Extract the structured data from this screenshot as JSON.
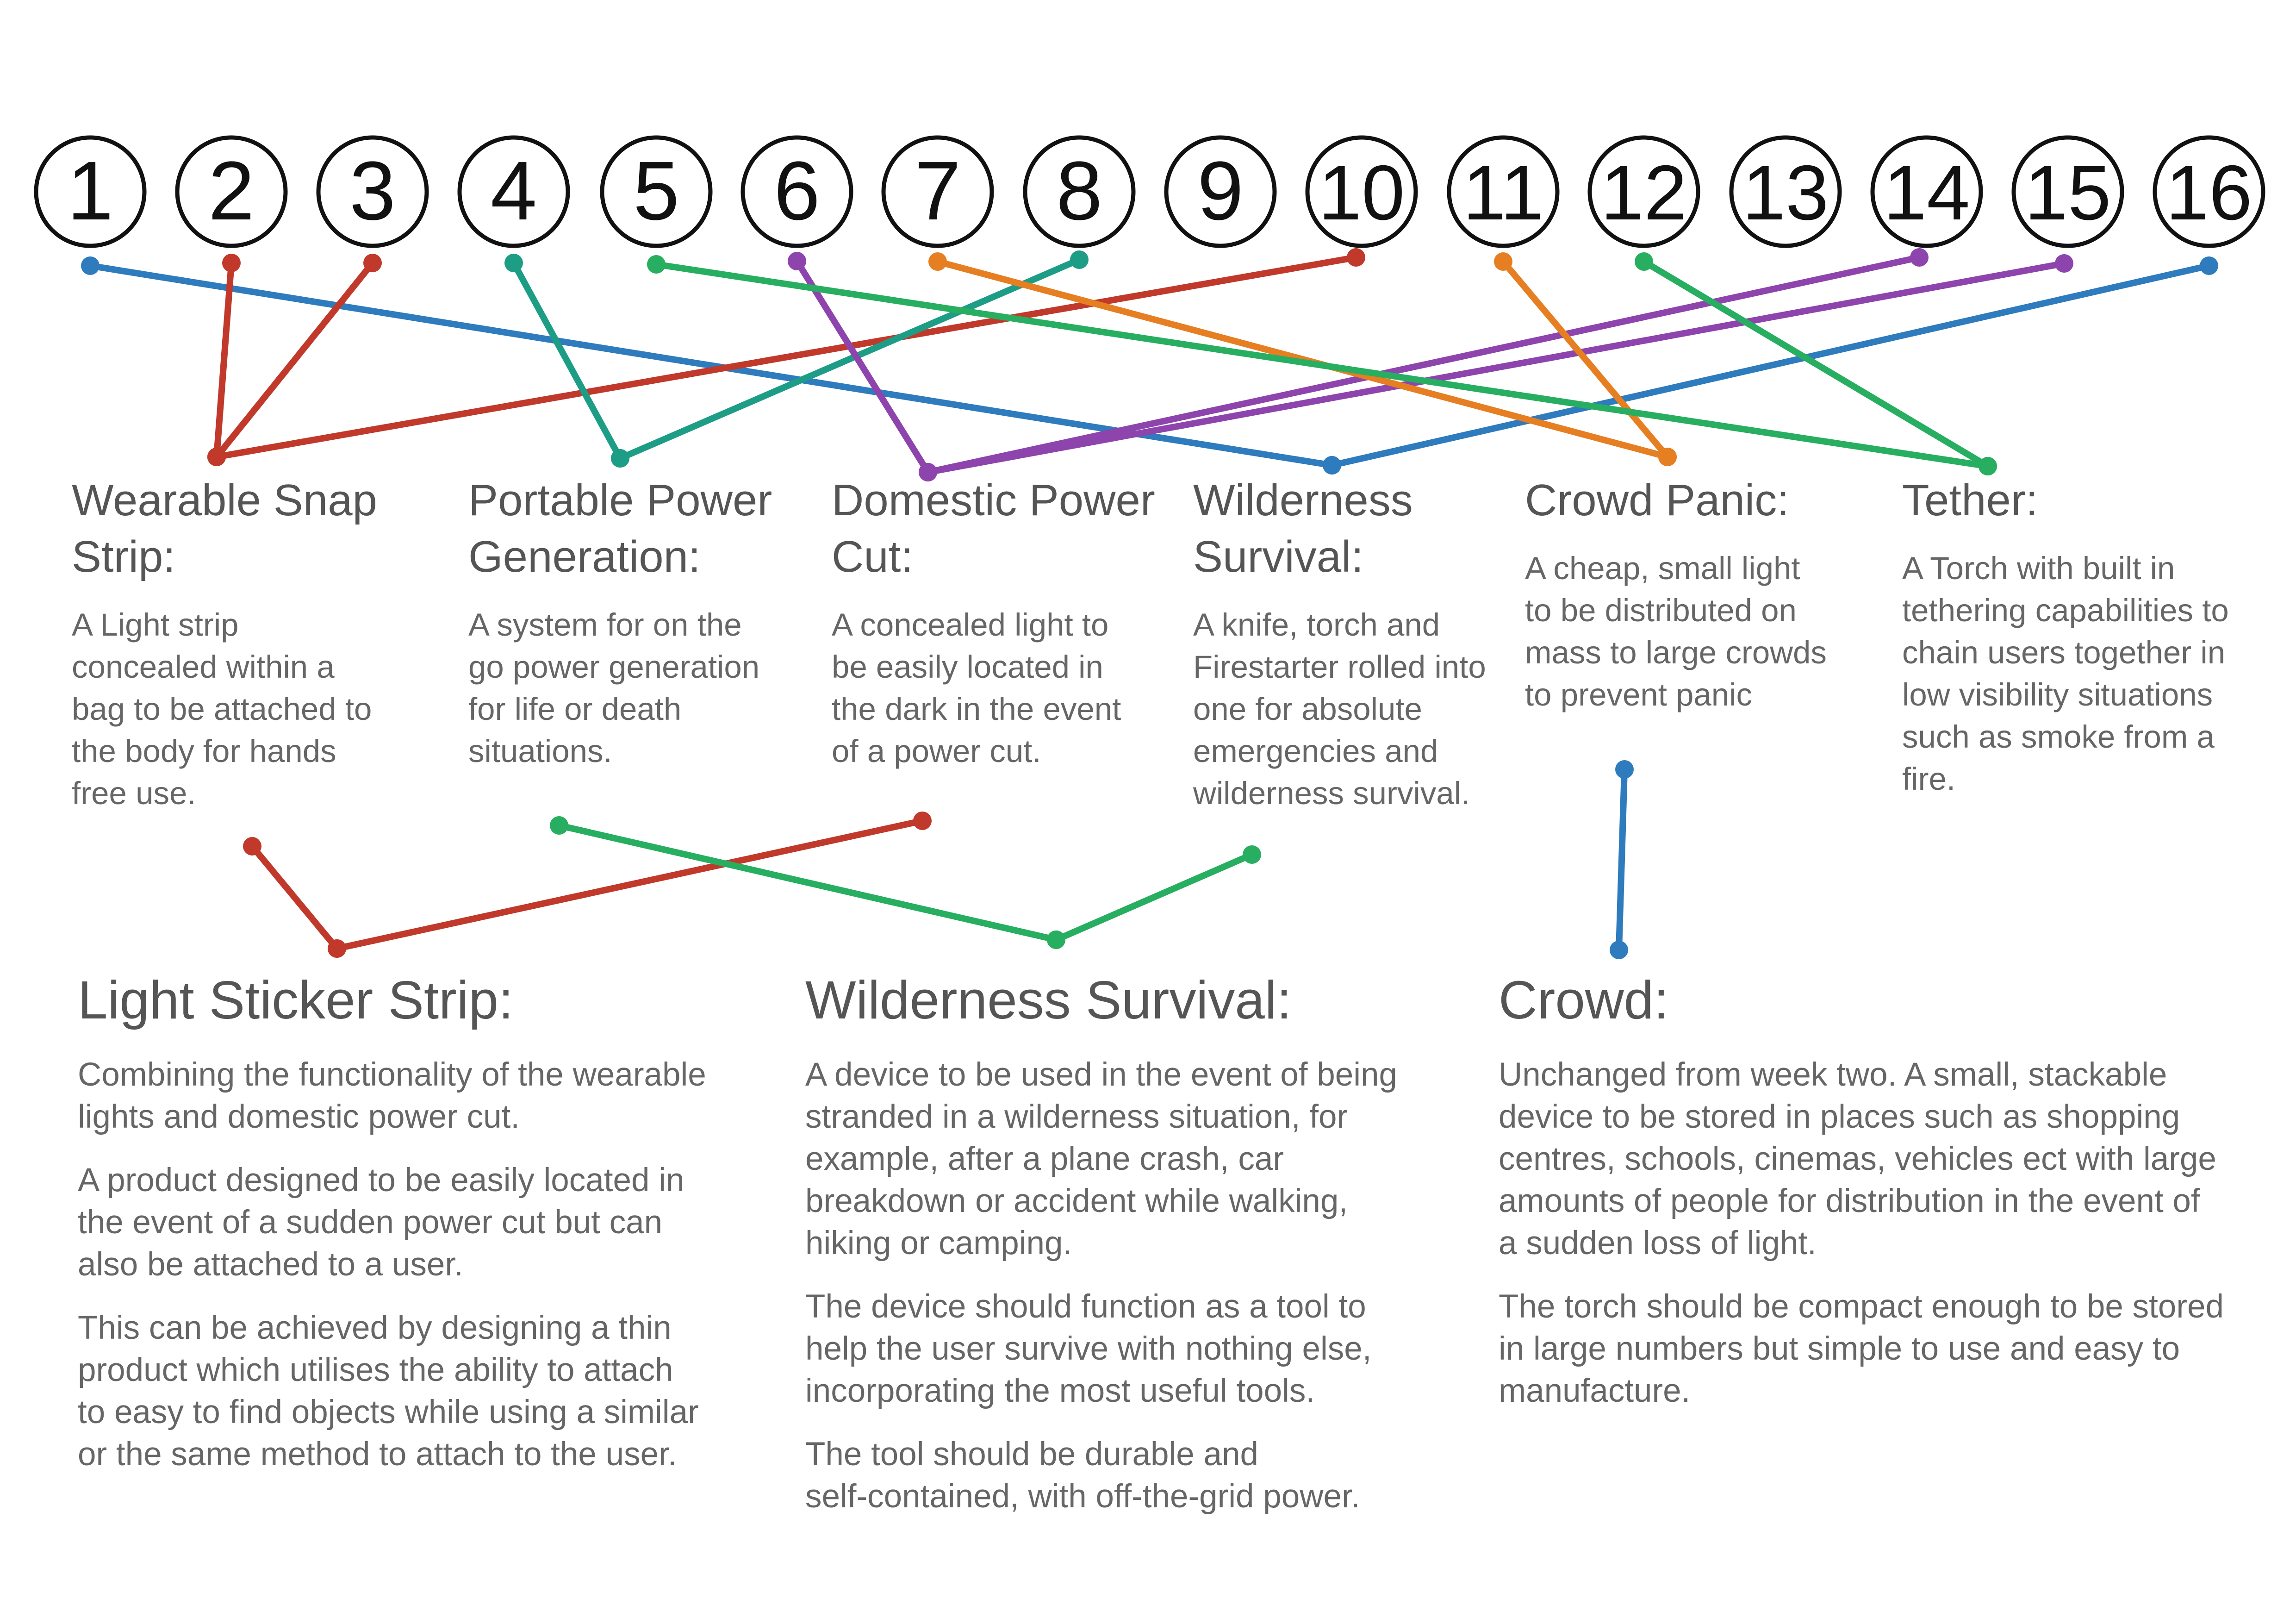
{
  "numbers": [
    "1",
    "2",
    "3",
    "4",
    "5",
    "6",
    "7",
    "8",
    "9",
    "10",
    "11",
    "12",
    "13",
    "14",
    "15",
    "16"
  ],
  "concepts": [
    {
      "title": "Wearable Snap\nStrip:",
      "body": "A Light strip\nconcealed within a\nbag to be attached to\nthe body for hands\nfree use."
    },
    {
      "title": "Portable Power\nGeneration:",
      "body": "A system for on the\ngo power generation\nfor life or death\nsituations."
    },
    {
      "title": "Domestic\nPower Cut:",
      "body": "A concealed light to\nbe easily located in\nthe dark in the event\nof a power cut."
    },
    {
      "title": "Wilderness\nSurvival:",
      "body": "A knife, torch and\nFirestarter rolled into\none for absolute\nemergencies and\nwilderness survival."
    },
    {
      "title": "Crowd Panic:",
      "body": "A cheap, small light\nto be distributed on\nmass to large crowds\nto prevent panic"
    },
    {
      "title": "Tether:",
      "body": "A Torch with built in\ntethering capabilities to\nchain users together in\nlow visibility situations\nsuch as smoke from a\nfire."
    }
  ],
  "products": [
    {
      "title": "Light Sticker Strip:",
      "paragraphs": [
        "Combining the functionality of the wearable\nlights and domestic power cut.",
        "A product designed to be easily located in\nthe event of a sudden power cut but can\nalso be attached to a user.",
        "This can be achieved by designing a thin\nproduct which utilises the ability to attach\nto easy to find objects while using a similar\nor the same method to attach to the user."
      ]
    },
    {
      "title": "Wilderness Survival:",
      "paragraphs": [
        "A device to be used in the event of being\nstranded in a wilderness situation, for\nexample, after a plane crash, car\nbreakdown or accident while walking,\nhiking or camping.",
        "The device should function as a tool to\nhelp the user survive with nothing else,\nincorporating the most useful tools.",
        "The tool should be durable and\nself-contained, with off-the-grid power."
      ]
    },
    {
      "title": "Crowd:",
      "paragraphs": [
        "Unchanged from week two. A small, stackable\ndevice to be stored in places such as shopping\ncentres, schools, cinemas, vehicles ect with large\namounts of people for distribution in the event of\na sudden loss of light.",
        "The torch should be compact enough to be stored\nin large numbers but simple to use and easy to\nmanufacture."
      ]
    }
  ],
  "links": [
    {
      "from": "1",
      "to": "Wilderness Survival:",
      "color": "#2e7bbd"
    },
    {
      "from": "16",
      "to": "Wilderness Survival:",
      "color": "#2e7bbd"
    },
    {
      "from": "2",
      "to": "Wearable Snap Strip:",
      "color": "#c0392b"
    },
    {
      "from": "3",
      "to": "Wearable Snap Strip:",
      "color": "#c0392b"
    },
    {
      "from": "10",
      "to": "Wearable Snap Strip:",
      "color": "#c0392b"
    },
    {
      "from": "4",
      "to": "Portable Power Generation:",
      "color": "#1e9d86"
    },
    {
      "from": "8",
      "to": "Portable Power Generation:",
      "color": "#1e9d86"
    },
    {
      "from": "6",
      "to": "Domestic Power Cut:",
      "color": "#8e44ad"
    },
    {
      "from": "14",
      "to": "Domestic Power Cut:",
      "color": "#8e44ad"
    },
    {
      "from": "15",
      "to": "Domestic Power Cut:",
      "color": "#8e44ad"
    },
    {
      "from": "7",
      "to": "Crowd Panic:",
      "color": "#e67e22"
    },
    {
      "from": "11",
      "to": "Crowd Panic:",
      "color": "#e67e22"
    },
    {
      "from": "5",
      "to": "Tether:",
      "color": "#27ae60"
    },
    {
      "from": "12",
      "to": "Tether:",
      "color": "#27ae60"
    },
    {
      "from": "Wearable Snap Strip:",
      "to": "Light Sticker Strip:",
      "color": "#c0392b"
    },
    {
      "from": "Domestic Power Cut:",
      "to": "Light Sticker Strip:",
      "color": "#c0392b"
    },
    {
      "from": "Portable Power Generation:",
      "to": "Wilderness Survival:",
      "color": "#27ae60"
    },
    {
      "from": "Wilderness Survival:",
      "to": "Wilderness Survival:",
      "color": "#27ae60"
    },
    {
      "from": "Crowd Panic:",
      "to": "Crowd:",
      "color": "#2e7bbd"
    }
  ]
}
